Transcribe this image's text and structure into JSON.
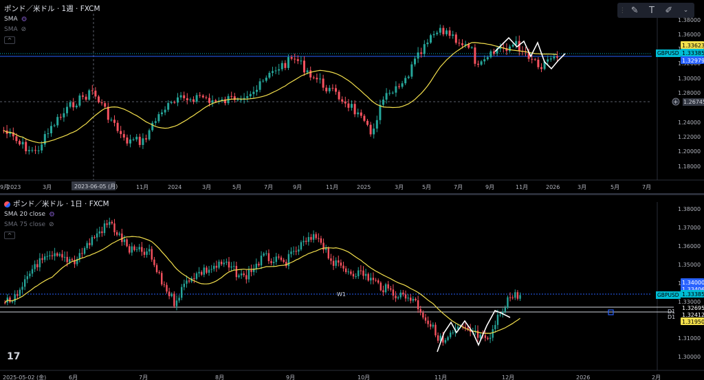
{
  "toolbar": {
    "icons": [
      "grip-icon",
      "brush-icon",
      "text-icon",
      "pen-icon",
      "chevron-down-icon"
    ],
    "text_glyph": "T"
  },
  "pane1": {
    "title": "ポンド／米ドル · 1週 · FXCM",
    "indicators": [
      {
        "label": "SMA"
      },
      {
        "label": "SMA"
      }
    ],
    "price_labels": [
      "1.38000",
      "1.36000",
      "1.34000",
      "1.32000",
      "1.30000",
      "1.28000",
      "1.24000",
      "1.22000",
      "1.20000",
      "1.18000"
    ],
    "time_labels": [
      "2023",
      "3月",
      "9月",
      "11月",
      "2024",
      "3月",
      "5月",
      "7月",
      "9月",
      "11月",
      "2025",
      "3月",
      "5月",
      "7月",
      "9月",
      "11月",
      "2026",
      "3月",
      "5月",
      "7月"
    ],
    "crosshair_time": "2023-06-05 (月)",
    "crosshair_price": "1.26745",
    "badges": [
      {
        "text": "1.33623",
        "bg": "#f4e04d",
        "fg": "#000"
      },
      {
        "text": "GBPUSD",
        "bg": "#00bcd4",
        "fg": "#000"
      },
      {
        "text": "1.33385",
        "bg": "#00bcd4",
        "fg": "#000"
      },
      {
        "text": "1.32979",
        "bg": "#2962ff",
        "fg": "#fff"
      }
    ]
  },
  "pane2": {
    "title": "ポンド／米ドル · 1日 · FXCM",
    "indicators": [
      {
        "label": "SMA 20 close"
      },
      {
        "label": "SMA 75 close"
      }
    ],
    "price_labels": [
      "1.38000",
      "1.37000",
      "1.36000",
      "1.35000",
      "1.34000",
      "1.33000",
      "1.31000",
      "1.30000"
    ],
    "time_labels": [
      "2025-05-02 (金)",
      "6月",
      "7月",
      "8月",
      "9月",
      "10月",
      "11月",
      "12月",
      "2026",
      "2月"
    ],
    "badges": [
      {
        "text": "1.34000",
        "bg": "#2962ff",
        "fg": "#fff"
      },
      {
        "text": "1.33406",
        "bg": "#2962ff",
        "fg": "#fff"
      },
      {
        "text": "GBPUSD",
        "bg": "#00bcd4",
        "fg": "#000"
      },
      {
        "text": "1.33385",
        "bg": "#00bcd4",
        "fg": "#000"
      },
      {
        "text": "1.32695",
        "bg": "#000",
        "fg": "#fff"
      },
      {
        "text": "1.32412",
        "bg": "#000",
        "fg": "#fff"
      },
      {
        "text": "1.31950",
        "bg": "#f4e04d",
        "fg": "#000"
      }
    ],
    "line_labels": [
      "W1",
      "D1",
      "D1"
    ]
  },
  "colors": {
    "up": "#26a69a",
    "down": "#f7525f",
    "sma": "#f4e04d",
    "bg": "#000000",
    "grid": "#1c1f27",
    "text": "#b2b5be",
    "wave": "#ffffff"
  }
}
